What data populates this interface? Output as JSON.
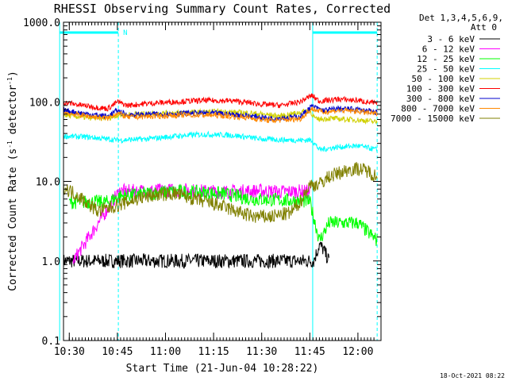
{
  "chart_data": {
    "type": "line",
    "title": "RHESSI Observing Summary Count Rates, Corrected",
    "xlabel": "Start Time (21-Jun-04 10:28:22)",
    "ylabel_main": "Corrected Count Rate (s",
    "ylabel_sup1": "-1",
    "ylabel_mid": " detector",
    "ylabel_sup2": "-1",
    "ylabel_end": ")",
    "yscale": "log",
    "ylim": [
      0.1,
      1000.0
    ],
    "xlim_minutes": [
      10.47,
      12.12
    ],
    "y_ticks": [
      "0.1",
      "1.0",
      "10.0",
      "100.0",
      "1000.0"
    ],
    "x_ticks": [
      "10:30",
      "10:45",
      "11:00",
      "11:15",
      "11:30",
      "11:45",
      "12:00"
    ],
    "x_tick_hours": [
      10.5,
      10.75,
      11.0,
      11.25,
      11.5,
      11.75,
      12.0
    ],
    "legend": {
      "header_line1": "Det 1,3,4,5,6,9,",
      "header_line2": "Att 0",
      "placement": "right"
    },
    "night_flag": "N",
    "night_hours": [
      10.45,
      10.755
    ],
    "night_hours_2": [
      11.765,
      12.1
    ],
    "series": [
      {
        "name": "3 - 6 keV",
        "color": "#000000",
        "x": [
          10.47,
          10.76,
          11.0,
          11.2,
          11.4,
          11.62,
          11.77,
          11.8,
          11.82,
          11.85
        ],
        "y": [
          1.0,
          1.0,
          1.0,
          1.0,
          1.0,
          1.0,
          1.0,
          1.6,
          1.4,
          1.0
        ]
      },
      {
        "name": "6 - 12 keV",
        "color": "#ff00ff",
        "x": [
          10.52,
          10.76,
          10.9,
          11.0,
          11.1,
          11.2,
          11.3,
          11.4,
          11.5,
          11.6,
          11.7,
          11.75
        ],
        "y": [
          1.0,
          7.5,
          7.6,
          7.7,
          7.8,
          7.5,
          7.4,
          7.5,
          7.6,
          7.4,
          7.5,
          7.4
        ]
      },
      {
        "name": "12 - 25 keV",
        "color": "#00ff00",
        "x": [
          10.5,
          10.6,
          10.7,
          10.76,
          10.85,
          10.95,
          11.05,
          11.15,
          11.3,
          11.45,
          11.6,
          11.75,
          11.8,
          11.85,
          12.0,
          12.1
        ],
        "y": [
          5.5,
          5.5,
          5.5,
          6.5,
          6.8,
          7.2,
          7.5,
          7.3,
          7.0,
          6.0,
          5.8,
          5.6,
          1.8,
          3.0,
          3.0,
          1.8
        ]
      },
      {
        "name": "25 - 50 keV",
        "color": "#00ffff",
        "x": [
          10.47,
          10.6,
          10.75,
          10.9,
          11.05,
          11.2,
          11.35,
          11.5,
          11.65,
          11.76,
          11.8,
          11.9,
          12.0,
          12.1
        ],
        "y": [
          37,
          36,
          33,
          34,
          37,
          39,
          38,
          34,
          33,
          33,
          25,
          27,
          28,
          25
        ]
      },
      {
        "name": "50 - 100 keV",
        "color": "#d0d000",
        "x": [
          10.47,
          10.6,
          10.7,
          10.75,
          10.85,
          11.0,
          11.15,
          11.3,
          11.45,
          11.6,
          11.75,
          11.78,
          11.85,
          11.95,
          12.05,
          12.1
        ],
        "y": [
          68,
          63,
          62,
          68,
          70,
          72,
          74,
          75,
          72,
          66,
          78,
          60,
          62,
          60,
          58,
          55
        ]
      },
      {
        "name": "100 - 300 keV",
        "color": "#ff0000",
        "x": [
          10.47,
          10.6,
          10.7,
          10.75,
          10.8,
          10.9,
          11.05,
          11.2,
          11.35,
          11.5,
          11.6,
          11.7,
          11.76,
          11.8,
          11.9,
          12.0,
          12.1
        ],
        "y": [
          98,
          88,
          82,
          100,
          90,
          95,
          100,
          104,
          103,
          93,
          90,
          100,
          120,
          102,
          108,
          104,
          95
        ]
      },
      {
        "name": "300 - 800 keV",
        "color": "#0000cc",
        "x": [
          10.47,
          10.6,
          10.7,
          10.75,
          10.8,
          10.95,
          11.1,
          11.25,
          11.4,
          11.55,
          11.7,
          11.76,
          11.82,
          11.9,
          12.0,
          12.1
        ],
        "y": [
          78,
          70,
          66,
          78,
          68,
          70,
          72,
          72,
          68,
          62,
          65,
          88,
          78,
          82,
          80,
          73
        ]
      },
      {
        "name": "800 - 7000 keV",
        "color": "#ff8800",
        "x": [
          10.47,
          10.6,
          10.7,
          10.75,
          10.8,
          10.95,
          11.1,
          11.25,
          11.4,
          11.55,
          11.7,
          11.76,
          11.82,
          11.9,
          12.0,
          12.1
        ],
        "y": [
          73,
          66,
          62,
          73,
          64,
          66,
          68,
          68,
          64,
          58,
          61,
          82,
          74,
          78,
          76,
          70
        ]
      },
      {
        "name": "7000 - 15000 keV",
        "color": "#808000",
        "x": [
          10.47,
          10.55,
          10.65,
          10.75,
          10.85,
          10.95,
          11.05,
          11.15,
          11.3,
          11.45,
          11.55,
          11.65,
          11.7,
          11.75,
          11.8,
          11.85,
          11.95,
          12.0,
          12.05,
          12.1
        ],
        "y": [
          8.5,
          6.5,
          4.2,
          5.0,
          6.0,
          6.8,
          7.0,
          6.0,
          4.8,
          3.6,
          3.6,
          4.0,
          5.5,
          9.0,
          9.2,
          11.5,
          14.0,
          14.5,
          13.5,
          11.5
        ]
      }
    ],
    "grid": false
  },
  "footer": {
    "timestamp": "18-Oct-2021 08:22"
  }
}
